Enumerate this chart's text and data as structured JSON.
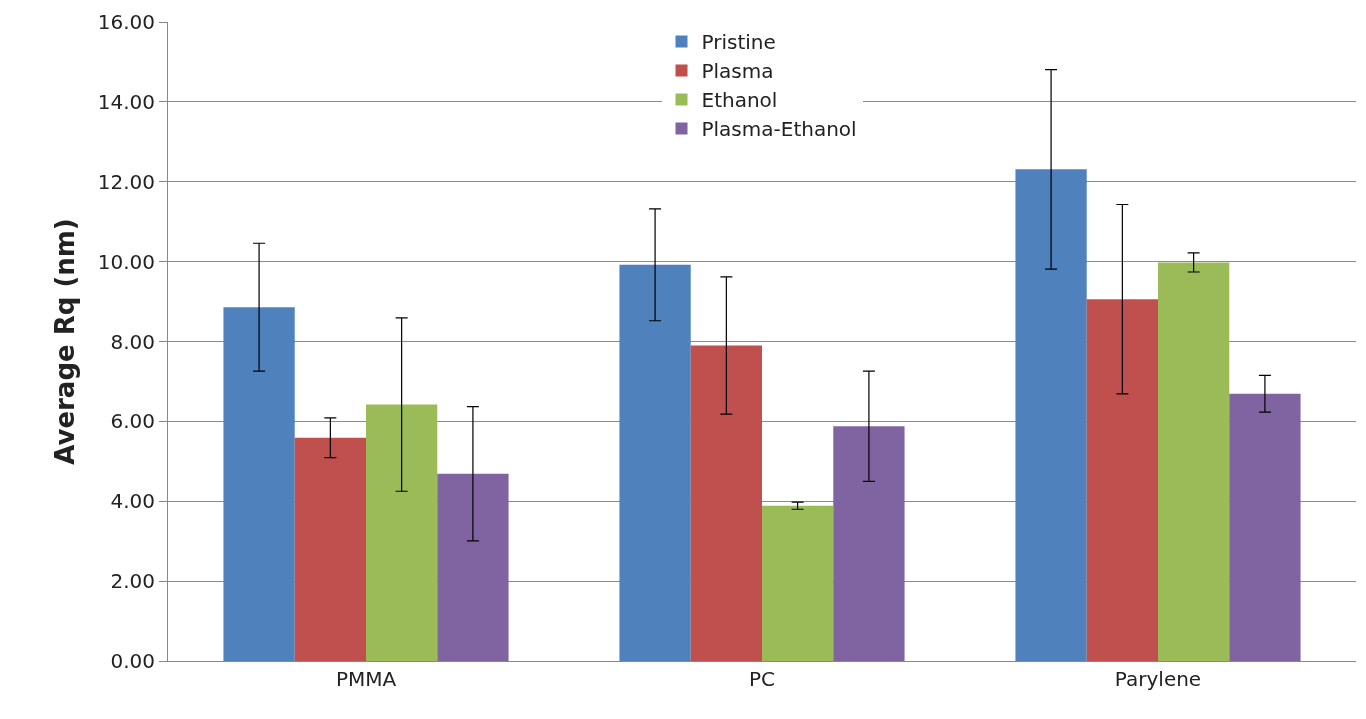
{
  "chart_data": {
    "type": "bar",
    "ylabel": "Average Rq (nm)",
    "categories": [
      "PMMA",
      "PC",
      "Parylene"
    ],
    "series": [
      {
        "name": "Pristine",
        "color": "#4f81bd",
        "values": [
          8.86,
          9.92,
          12.31
        ],
        "errors": [
          1.6,
          1.4,
          2.5
        ]
      },
      {
        "name": "Plasma",
        "color": "#c0504d",
        "values": [
          5.59,
          7.9,
          9.06
        ],
        "errors": [
          0.5,
          1.72,
          2.37
        ]
      },
      {
        "name": "Ethanol",
        "color": "#9bbb59",
        "values": [
          6.42,
          3.89,
          9.98
        ],
        "errors": [
          2.17,
          0.09,
          0.24
        ]
      },
      {
        "name": "Plasma-Ethanol",
        "color": "#8064a2",
        "values": [
          4.69,
          5.88,
          6.69
        ],
        "errors": [
          1.68,
          1.38,
          0.46
        ]
      }
    ],
    "ylim": [
      0,
      16
    ],
    "yticks": [
      {
        "value": 0,
        "label": "0.00"
      },
      {
        "value": 2,
        "label": "2.00"
      },
      {
        "value": 4,
        "label": "4.00"
      },
      {
        "value": 6,
        "label": "6.00"
      },
      {
        "value": 8,
        "label": "8.00"
      },
      {
        "value": 10,
        "label": "10.00"
      },
      {
        "value": 12,
        "label": "12.00"
      },
      {
        "value": 14,
        "label": "14.00"
      },
      {
        "value": 16,
        "label": "16.00"
      }
    ],
    "grid": "y",
    "legend": "top"
  }
}
